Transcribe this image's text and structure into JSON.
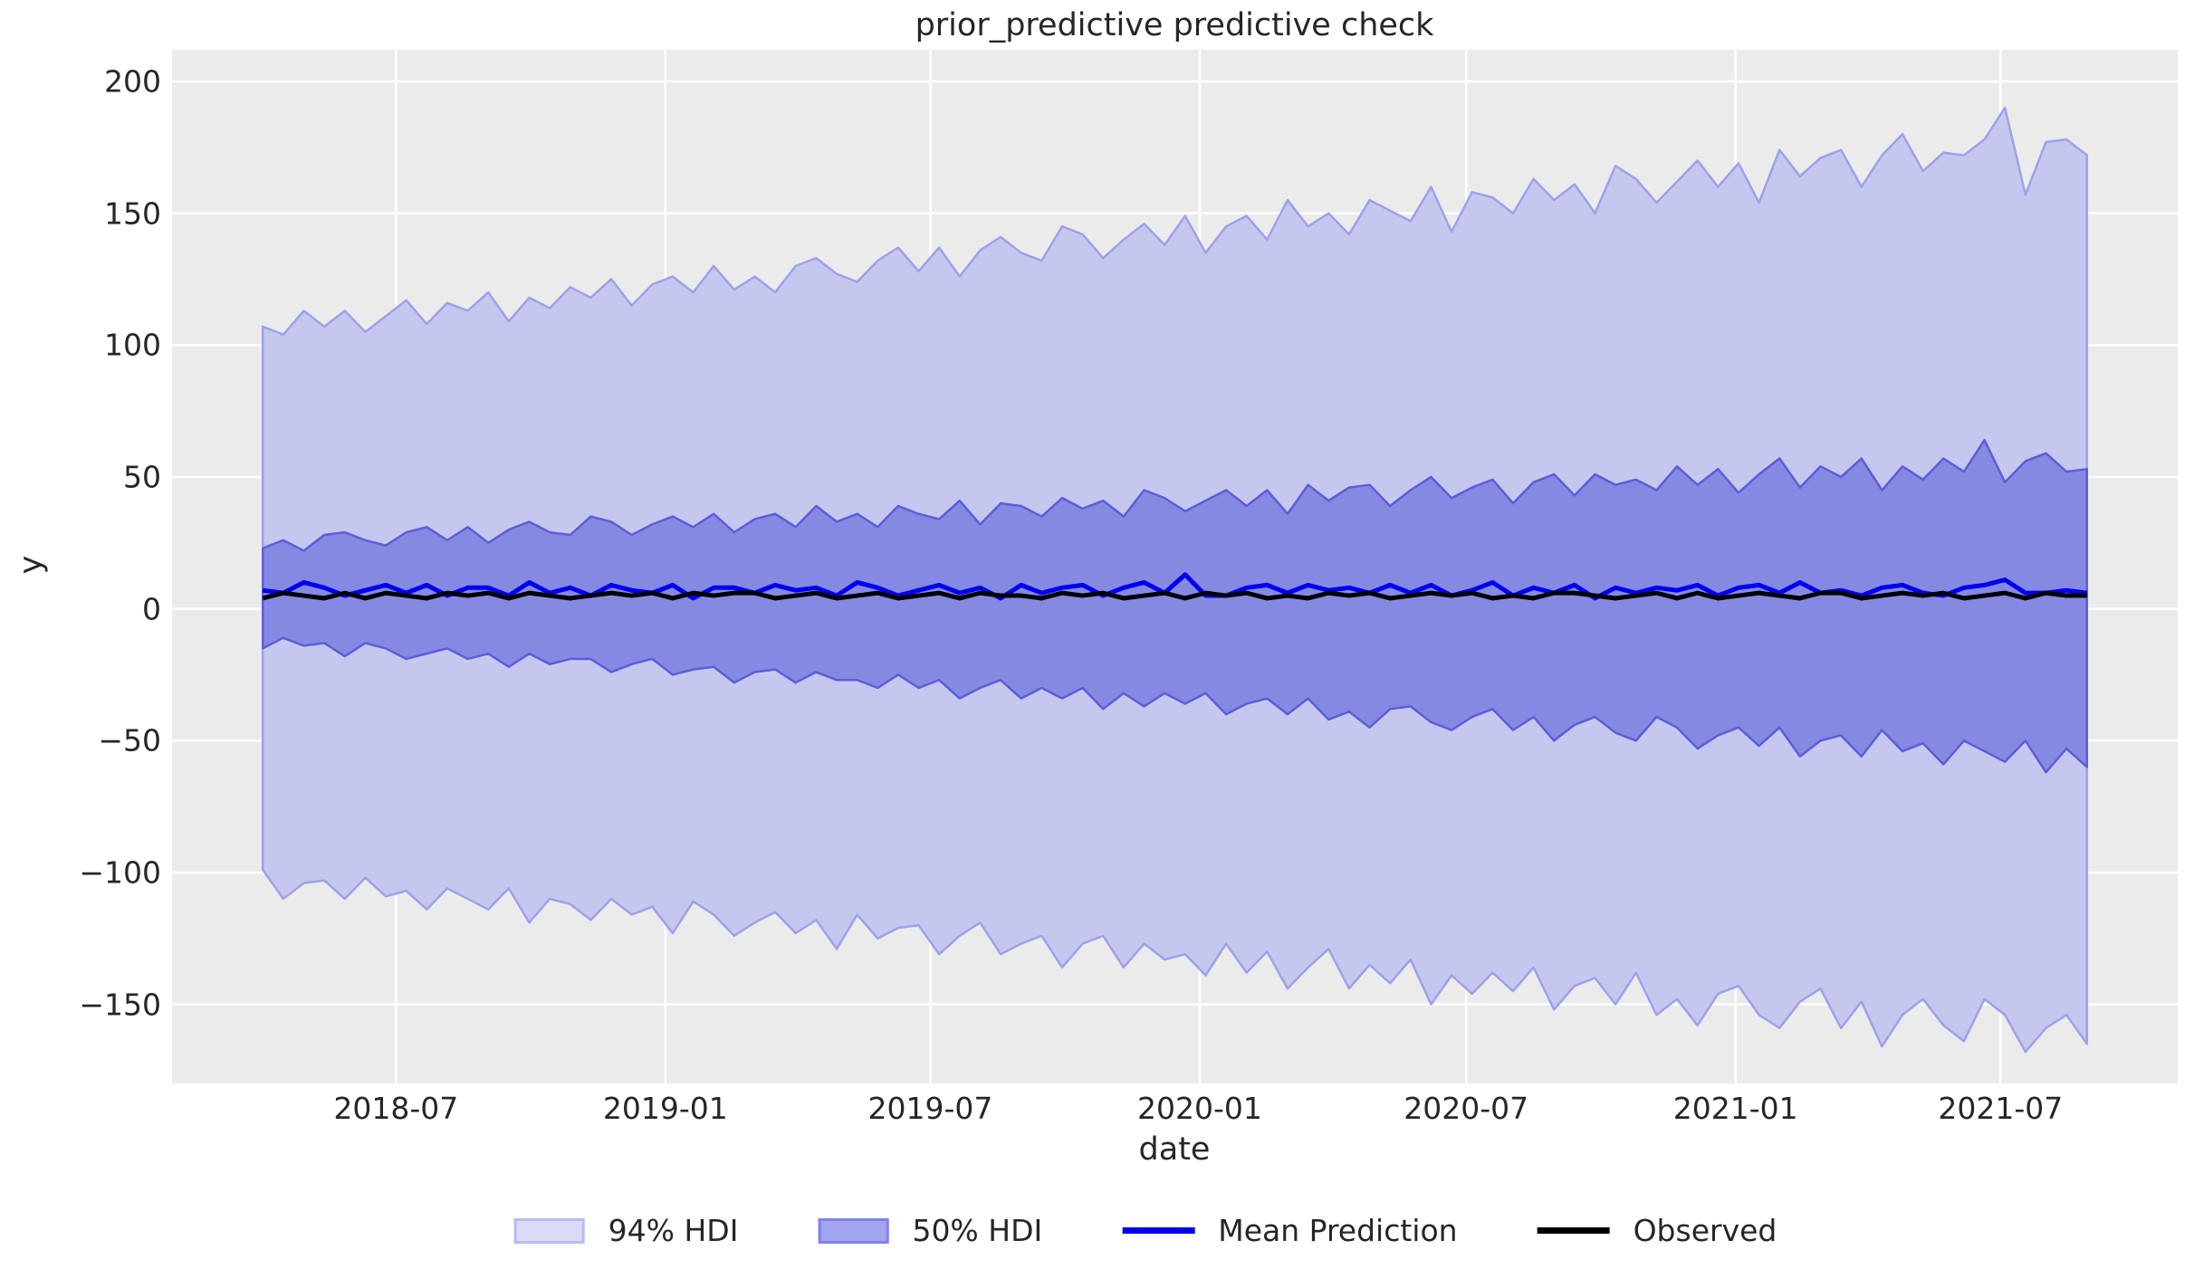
{
  "figure": {
    "title": "prior_predictive predictive check",
    "xlabel": "date",
    "ylabel": "y"
  },
  "legend": {
    "items": [
      {
        "label": "94% HDI",
        "swatch": "patch",
        "fill": "#dcdcf8",
        "border": "#b9baf1"
      },
      {
        "label": "50% HDI",
        "swatch": "patch",
        "fill": "#a2a4ee",
        "border": "#7f82e8"
      },
      {
        "label": "Mean Prediction",
        "swatch": "line",
        "color": "#0000f0"
      },
      {
        "label": "Observed",
        "swatch": "line",
        "color": "#000000"
      }
    ]
  },
  "chart_data": {
    "type": "line",
    "title": "prior_predictive predictive check",
    "xlabel": "date",
    "ylabel": "y",
    "grid": true,
    "legend_position": "bottom-center",
    "x_start_date": "2018-04-01",
    "x_interval_days": 14,
    "n_points": 90,
    "xlim_days": [
      -62,
      1308
    ],
    "ylim": [
      -180,
      212
    ],
    "x_ticks": [
      {
        "label": "2018-07",
        "day": 91
      },
      {
        "label": "2019-01",
        "day": 275
      },
      {
        "label": "2019-07",
        "day": 456
      },
      {
        "label": "2020-01",
        "day": 640
      },
      {
        "label": "2020-07",
        "day": 822
      },
      {
        "label": "2021-01",
        "day": 1006
      },
      {
        "label": "2021-07",
        "day": 1187
      }
    ],
    "y_ticks": [
      {
        "value": -150,
        "label": "−150"
      },
      {
        "value": -100,
        "label": "−100"
      },
      {
        "value": -50,
        "label": "−50"
      },
      {
        "value": 0,
        "label": "0"
      },
      {
        "value": 50,
        "label": "50"
      },
      {
        "value": 100,
        "label": "100"
      },
      {
        "value": 150,
        "label": "150"
      },
      {
        "value": 200,
        "label": "200"
      }
    ],
    "colors": {
      "figure_bg": "#ffffff",
      "plot_bg": "#ebebeb",
      "grid": "#ffffff",
      "hdi94_fill": "#c6c7ef",
      "hdi94_edge": "#9da1ea",
      "hdi50_fill": "#8689e2",
      "hdi50_edge": "#5a5ed8",
      "mean_line": "#0000f0",
      "observed_line": "#000000",
      "text": "#262626"
    },
    "series": {
      "hdi94_upper": [
        107,
        104,
        113,
        107,
        113,
        105,
        111,
        117,
        108,
        116,
        113,
        120,
        109,
        118,
        114,
        122,
        118,
        125,
        115,
        123,
        126,
        120,
        130,
        121,
        126,
        120,
        130,
        133,
        127,
        124,
        132,
        137,
        128,
        137,
        126,
        136,
        141,
        135,
        132,
        145,
        142,
        133,
        140,
        146,
        138,
        149,
        135,
        145,
        149,
        140,
        155,
        145,
        150,
        142,
        155,
        151,
        147,
        160,
        143,
        158,
        156,
        150,
        163,
        155,
        161,
        150,
        168,
        163,
        154,
        162,
        170,
        160,
        169,
        154,
        174,
        164,
        171,
        174,
        160,
        172,
        180,
        166,
        173,
        172,
        178,
        190,
        157,
        177,
        178,
        172
      ],
      "hdi94_lower": [
        -99,
        -110,
        -104,
        -103,
        -110,
        -102,
        -109,
        -107,
        -114,
        -106,
        -110,
        -114,
        -106,
        -119,
        -110,
        -112,
        -118,
        -110,
        -116,
        -113,
        -123,
        -111,
        -116,
        -124,
        -119,
        -115,
        -123,
        -118,
        -129,
        -116,
        -125,
        -121,
        -120,
        -131,
        -124,
        -119,
        -131,
        -127,
        -124,
        -136,
        -127,
        -124,
        -136,
        -127,
        -133,
        -131,
        -139,
        -127,
        -138,
        -130,
        -144,
        -136,
        -129,
        -144,
        -135,
        -142,
        -133,
        -150,
        -139,
        -146,
        -138,
        -145,
        -136,
        -152,
        -143,
        -140,
        -150,
        -138,
        -154,
        -148,
        -158,
        -146,
        -143,
        -154,
        -159,
        -149,
        -144,
        -159,
        -149,
        -166,
        -154,
        -148,
        -158,
        -164,
        -148,
        -154,
        -168,
        -159,
        -154,
        -165
      ],
      "hdi50_upper": [
        23,
        26,
        22,
        28,
        29,
        26,
        24,
        29,
        31,
        26,
        31,
        25,
        30,
        33,
        29,
        28,
        35,
        33,
        28,
        32,
        35,
        31,
        36,
        29,
        34,
        36,
        31,
        39,
        33,
        36,
        31,
        39,
        36,
        34,
        41,
        32,
        40,
        39,
        35,
        42,
        38,
        41,
        35,
        45,
        42,
        37,
        41,
        45,
        39,
        45,
        36,
        47,
        41,
        46,
        47,
        39,
        45,
        50,
        42,
        46,
        49,
        40,
        48,
        51,
        43,
        51,
        47,
        49,
        45,
        54,
        47,
        53,
        44,
        51,
        57,
        46,
        54,
        50,
        57,
        45,
        54,
        49,
        57,
        52,
        64,
        48,
        56,
        59,
        52,
        53
      ],
      "hdi50_lower": [
        -15,
        -11,
        -14,
        -13,
        -18,
        -13,
        -15,
        -19,
        -17,
        -15,
        -19,
        -17,
        -22,
        -17,
        -21,
        -19,
        -19,
        -24,
        -21,
        -19,
        -25,
        -23,
        -22,
        -28,
        -24,
        -23,
        -28,
        -24,
        -27,
        -27,
        -30,
        -25,
        -30,
        -27,
        -34,
        -30,
        -27,
        -34,
        -30,
        -34,
        -30,
        -38,
        -32,
        -37,
        -32,
        -36,
        -32,
        -40,
        -36,
        -34,
        -40,
        -34,
        -42,
        -39,
        -45,
        -38,
        -37,
        -43,
        -46,
        -41,
        -38,
        -46,
        -41,
        -50,
        -44,
        -41,
        -47,
        -50,
        -41,
        -45,
        -53,
        -48,
        -45,
        -52,
        -45,
        -56,
        -50,
        -48,
        -56,
        -46,
        -54,
        -51,
        -59,
        -50,
        -54,
        -58,
        -50,
        -62,
        -53,
        -60
      ],
      "mean": [
        7,
        6,
        10,
        8,
        5,
        7,
        9,
        6,
        9,
        5,
        8,
        8,
        5,
        10,
        6,
        8,
        5,
        9,
        7,
        6,
        9,
        4,
        8,
        8,
        6,
        9,
        7,
        8,
        5,
        10,
        8,
        5,
        7,
        9,
        6,
        8,
        4,
        9,
        6,
        8,
        9,
        5,
        8,
        10,
        6,
        13,
        5,
        5,
        8,
        9,
        6,
        9,
        7,
        8,
        6,
        9,
        6,
        9,
        5,
        7,
        10,
        5,
        8,
        6,
        9,
        4,
        8,
        6,
        8,
        7,
        9,
        5,
        8,
        9,
        6,
        10,
        6,
        7,
        5,
        8,
        9,
        6,
        5,
        8,
        9,
        11,
        6,
        6,
        7,
        6
      ],
      "observed": [
        4,
        6,
        5,
        4,
        6,
        4,
        6,
        5,
        4,
        6,
        5,
        6,
        4,
        6,
        5,
        4,
        5,
        6,
        5,
        6,
        4,
        6,
        5,
        6,
        6,
        4,
        5,
        6,
        4,
        5,
        6,
        4,
        5,
        6,
        4,
        6,
        5,
        5,
        4,
        6,
        5,
        6,
        4,
        5,
        6,
        4,
        6,
        5,
        6,
        4,
        5,
        4,
        6,
        5,
        6,
        4,
        5,
        6,
        5,
        6,
        4,
        5,
        4,
        6,
        6,
        5,
        4,
        5,
        6,
        4,
        6,
        4,
        5,
        6,
        5,
        4,
        6,
        6,
        4,
        5,
        6,
        5,
        6,
        4,
        5,
        6,
        4,
        6,
        5,
        5
      ]
    }
  }
}
